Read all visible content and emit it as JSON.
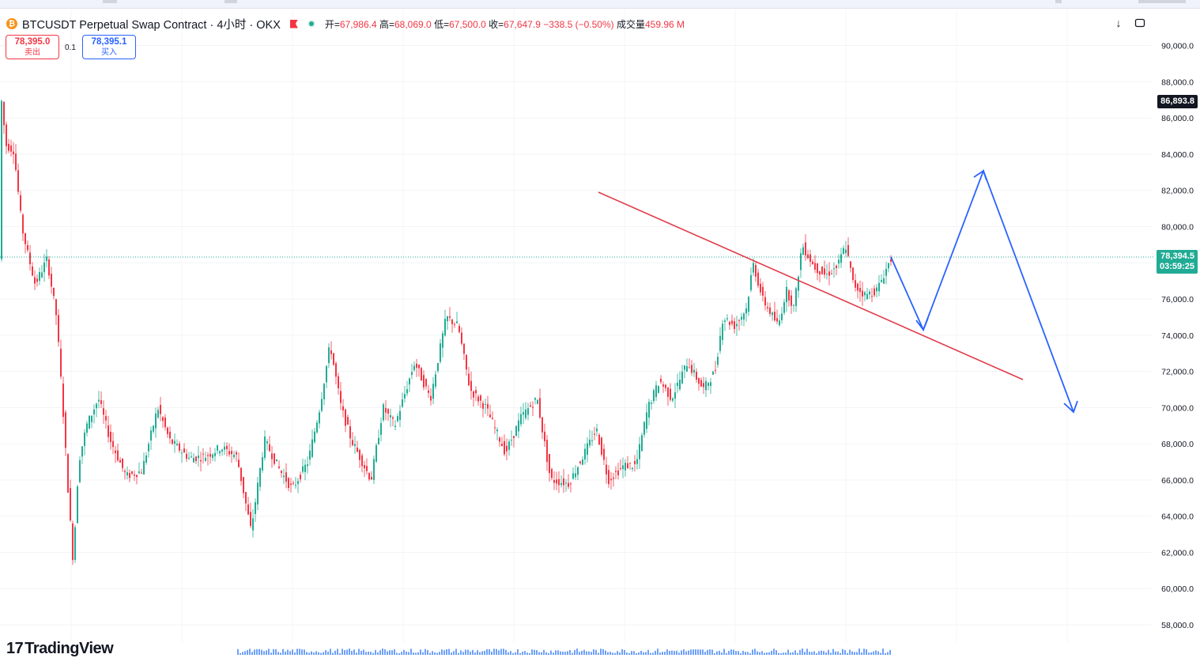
{
  "header": {
    "coin_icon": "bitcoin-coin-icon",
    "symbol_title": "BTCUSDT Perpetual Swap Contract · 4小时 · OKX",
    "ohlc": {
      "open_label": "开=",
      "open": "67,986.4",
      "high_label": "高=",
      "high": "68,069.0",
      "low_label": "低=",
      "low": "67,500.0",
      "close_label": "收=",
      "close": "67,647.9",
      "change": "−338.5 (−0.50%)",
      "volume_label": "成交量",
      "volume": "459.96 M"
    }
  },
  "trade": {
    "sell_price": "78,395.0",
    "sell_label": "卖出",
    "spread": "0.1",
    "buy_price": "78,395.1",
    "buy_label": "买入"
  },
  "price_axis": {
    "ticks": [
      "90,000.0",
      "88,000.0",
      "86,000.0",
      "84,000.0",
      "82,000.0",
      "80,000.0",
      "78,000.0",
      "76,000.0",
      "74,000.0",
      "72,000.0",
      "70,000.0",
      "68,000.0",
      "66,000.0",
      "64,000.0",
      "62,000.0",
      "60,000.0",
      "58,000.0"
    ],
    "high_marker": "86,893.8",
    "last_price": "78,394.5",
    "countdown": "03:59:25"
  },
  "toolbar": {
    "download_icon": "arrow-down-icon",
    "fullscreen_icon": "fullscreen-icon"
  },
  "branding": {
    "logo_text": "TradingView"
  },
  "colors": {
    "up": "#22ab94",
    "down": "#f23645",
    "trendline": "#e03c4a",
    "projection": "#2962ff"
  }
}
